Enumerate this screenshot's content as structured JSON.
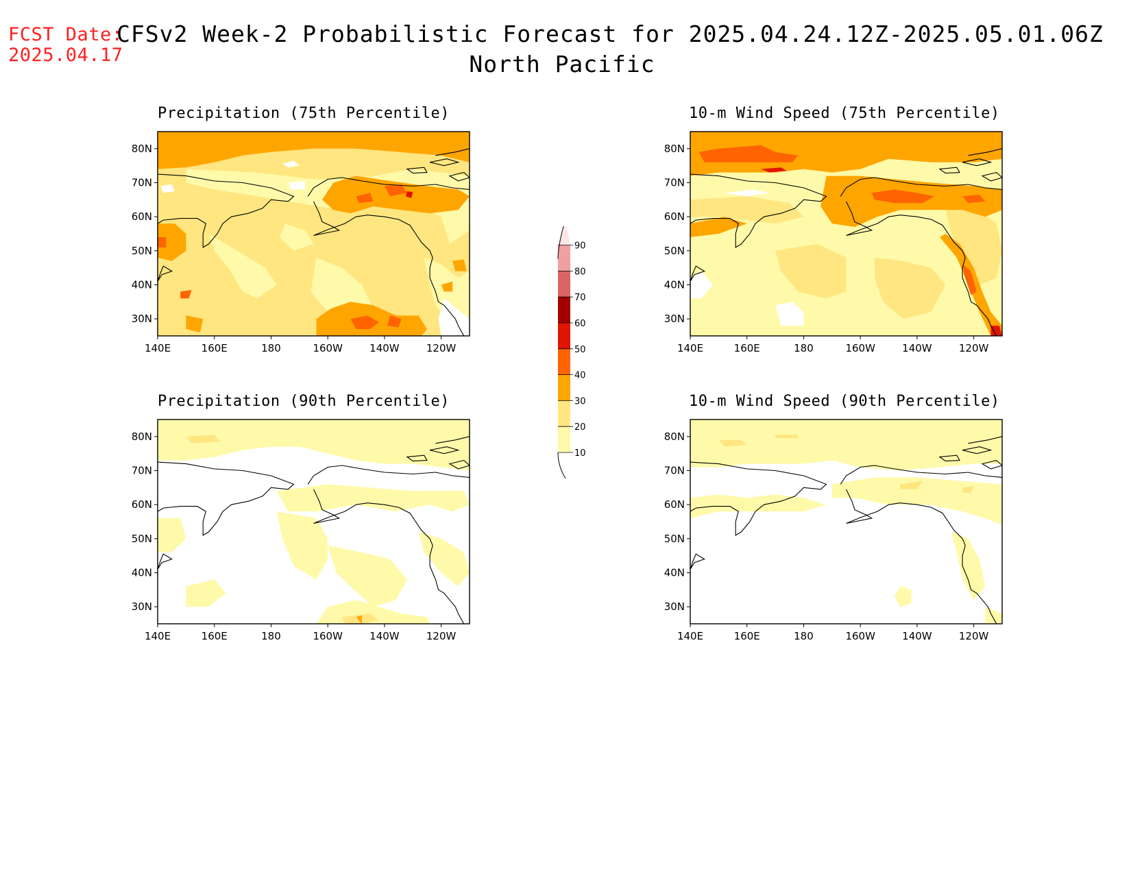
{
  "header": {
    "fcst_label": "FCST Date:",
    "fcst_date": "2025.04.17",
    "title_line1": "CFSv2 Week-2 Probabilistic Forecast for 2025.04.24.12Z-2025.05.01.06Z",
    "title_line2": "North Pacific"
  },
  "panels": [
    {
      "title": "Precipitation (75th Percentile)"
    },
    {
      "title": "10-m Wind Speed (75th Percentile)"
    },
    {
      "title": "Precipitation (90th Percentile)"
    },
    {
      "title": "10-m Wind Speed (90th Percentile)"
    }
  ],
  "axes": {
    "lon_labels": [
      "140E",
      "160E",
      "180",
      "160W",
      "140W",
      "120W"
    ],
    "lat_labels": [
      "80N",
      "70N",
      "60N",
      "50N",
      "40N",
      "30N"
    ]
  },
  "colorbar": {
    "levels": [
      "10",
      "20",
      "30",
      "40",
      "50",
      "60",
      "70",
      "80",
      "90"
    ],
    "colors": [
      "#fffaaa",
      "#ffe680",
      "#ffa500",
      "#ff6400",
      "#e11400",
      "#a50000",
      "#dc6464",
      "#f0a0a0",
      "#ffe6e6"
    ]
  }
}
